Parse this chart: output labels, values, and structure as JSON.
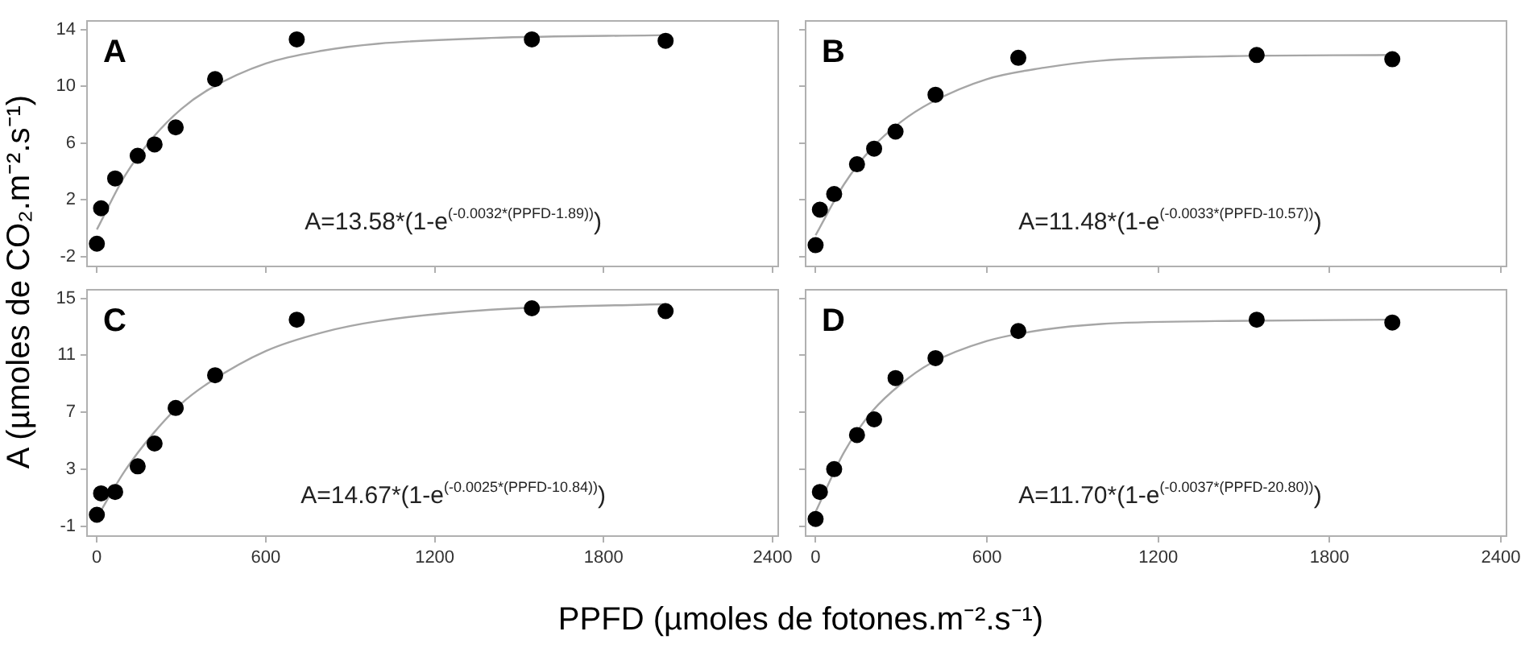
{
  "chart_data": [
    {
      "type": "scatter",
      "title": "A",
      "ylabel": "A (µmoles de CO₂.m⁻².s⁻¹)",
      "x": [
        0,
        15,
        65,
        145,
        205,
        280,
        420,
        710,
        1545,
        2020
      ],
      "series": [
        {
          "type": "scatter",
          "color": "#000000",
          "marker": "circle",
          "values": [
            -1.1,
            1.4,
            3.5,
            5.1,
            5.9,
            7.1,
            10.5,
            13.3,
            13.3,
            13.2
          ]
        },
        {
          "type": "line",
          "color": "#a6a6a6",
          "marker": "none",
          "x": [
            0,
            100,
            200,
            300,
            400,
            600,
            800,
            1000,
            1400,
            2020
          ],
          "values": [
            -0.1,
            3.7,
            6.4,
            8.4,
            9.8,
            11.6,
            12.5,
            13.0,
            13.4,
            13.6
          ]
        }
      ],
      "xlim": [
        -35,
        2420
      ],
      "xticks": [
        0,
        600,
        1200,
        1800,
        2400
      ],
      "ylim": [
        -2.7,
        14.6
      ],
      "yticks": [
        -2,
        2,
        6,
        10,
        14
      ],
      "tick_labels": "y",
      "annotations": [
        "A=13.58*(1-e$^{(-0.0032*(PPFD-1.89))}$)"
      ]
    },
    {
      "type": "scatter",
      "title": "B",
      "x": [
        0,
        15,
        65,
        145,
        205,
        280,
        420,
        710,
        1545,
        2020
      ],
      "series": [
        {
          "type": "scatter",
          "color": "#000000",
          "marker": "circle",
          "values": [
            -1.2,
            1.3,
            2.4,
            4.5,
            5.6,
            6.8,
            9.4,
            12.0,
            12.2,
            11.9
          ]
        },
        {
          "type": "line",
          "color": "#a6a6a6",
          "marker": "none",
          "x": [
            0,
            100,
            200,
            300,
            400,
            600,
            800,
            1000,
            1400,
            2020
          ],
          "values": [
            -0.5,
            3.1,
            5.7,
            7.5,
            8.8,
            10.5,
            11.3,
            11.8,
            12.1,
            12.2
          ]
        }
      ],
      "xlim": [
        -35,
        2420
      ],
      "xticks": [
        0,
        600,
        1200,
        1800,
        2400
      ],
      "ylim": [
        -2.7,
        14.6
      ],
      "yticks": [
        -2,
        2,
        6,
        10,
        14
      ],
      "tick_labels": false,
      "annotations": [
        "A=11.48*(1-e$^{(-0.0033*(PPFD-10.57))}$)"
      ]
    },
    {
      "type": "scatter",
      "title": "C",
      "xlabel": "PPFD (µmoles de fotones.m⁻².s⁻¹)",
      "x": [
        0,
        15,
        65,
        145,
        205,
        280,
        420,
        710,
        1545,
        2020
      ],
      "series": [
        {
          "type": "scatter",
          "color": "#000000",
          "marker": "circle",
          "values": [
            -0.2,
            1.3,
            1.4,
            3.2,
            4.8,
            7.3,
            9.6,
            13.5,
            14.3,
            14.1
          ]
        },
        {
          "type": "line",
          "color": "#a6a6a6",
          "marker": "none",
          "x": [
            0,
            100,
            200,
            300,
            400,
            600,
            800,
            1000,
            1400,
            2020
          ],
          "values": [
            -0.4,
            2.9,
            5.5,
            7.6,
            9.1,
            11.3,
            12.6,
            13.4,
            14.2,
            14.6
          ]
        }
      ],
      "xlim": [
        -35,
        2420
      ],
      "xticks": [
        0,
        600,
        1200,
        1800,
        2400
      ],
      "ylim": [
        -1.7,
        15.6
      ],
      "yticks": [
        -1,
        3,
        7,
        11,
        15
      ],
      "annotations": [
        "A=14.67*(1-e$^{(-0.0025*(PPFD-10.84))}$)"
      ]
    },
    {
      "type": "scatter",
      "title": "D",
      "x": [
        0,
        15,
        65,
        145,
        205,
        280,
        420,
        710,
        1545,
        2020
      ],
      "series": [
        {
          "type": "scatter",
          "color": "#000000",
          "marker": "circle",
          "values": [
            -0.5,
            1.4,
            3.0,
            5.4,
            6.5,
            9.4,
            10.8,
            12.7,
            13.5,
            13.3
          ]
        },
        {
          "type": "line",
          "color": "#a6a6a6",
          "marker": "none",
          "x": [
            0,
            100,
            200,
            300,
            400,
            600,
            800,
            1000,
            1400,
            2020
          ],
          "values": [
            0.0,
            4.2,
            7.1,
            9.0,
            10.4,
            12.0,
            12.8,
            13.2,
            13.4,
            13.5
          ]
        }
      ],
      "xlim": [
        -35,
        2420
      ],
      "xticks": [
        0,
        600,
        1200,
        1800,
        2400
      ],
      "ylim": [
        -1.7,
        15.6
      ],
      "yticks": [
        -1,
        3,
        7,
        11,
        15
      ],
      "tick_labels": "x",
      "annotations": [
        "A=11.70*(1-e$^{(-0.0037*(PPFD-20.80))}$)"
      ]
    }
  ]
}
